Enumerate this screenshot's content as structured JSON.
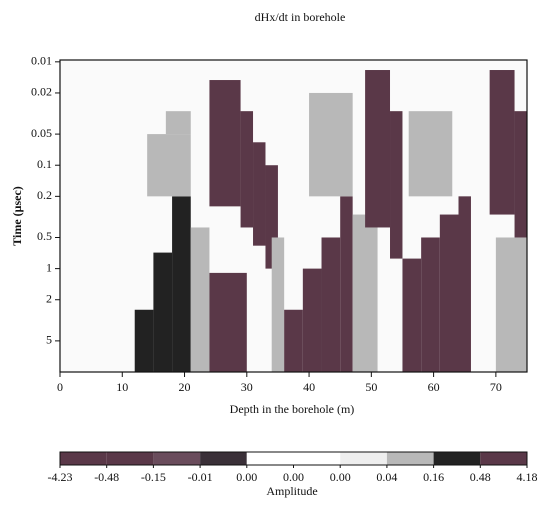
{
  "chart_data": {
    "type": "heatmap",
    "title": "dHx/dt in borehole",
    "xlabel": "Depth in the borehole (m)",
    "ylabel": "Time (μsec)",
    "xlim": [
      0,
      75
    ],
    "xticks": [
      0,
      10,
      20,
      30,
      40,
      50,
      60,
      70
    ],
    "ylim": [
      0.0096,
      10
    ],
    "yscale": "log",
    "yticks": [
      0.01,
      0.02,
      0.05,
      0.1,
      0.2,
      0.5,
      1,
      2,
      5
    ],
    "background": "#fafafa",
    "cells": [
      {
        "x0": 12,
        "x1": 15,
        "t0": 2.5,
        "t1": 10,
        "value": 0.3
      },
      {
        "x0": 15,
        "x1": 18,
        "t0": 0.7,
        "t1": 10,
        "value": 0.3
      },
      {
        "x0": 18,
        "x1": 21,
        "t0": 0.2,
        "t1": 10,
        "value": 0.3
      },
      {
        "x0": 14,
        "x1": 21,
        "t0": 0.05,
        "t1": 0.2,
        "value": 0.1
      },
      {
        "x0": 17,
        "x1": 21,
        "t0": 0.03,
        "t1": 0.05,
        "value": 0.1
      },
      {
        "x0": 21,
        "x1": 24,
        "t0": 0.4,
        "t1": 10,
        "value": 0.1
      },
      {
        "x0": 24,
        "x1": 29,
        "t0": 0.015,
        "t1": 0.25,
        "value": -1
      },
      {
        "x0": 29,
        "x1": 31,
        "t0": 0.03,
        "t1": 0.4,
        "value": -1
      },
      {
        "x0": 31,
        "x1": 33,
        "t0": 0.06,
        "t1": 0.6,
        "value": -1
      },
      {
        "x0": 33,
        "x1": 35,
        "t0": 0.1,
        "t1": 1,
        "value": -1
      },
      {
        "x0": 24,
        "x1": 30,
        "t0": 1.1,
        "t1": 10,
        "value": -1
      },
      {
        "x0": 34,
        "x1": 36,
        "t0": 0.5,
        "t1": 10,
        "value": 0.1
      },
      {
        "x0": 36,
        "x1": 39,
        "t0": 2.5,
        "t1": 10,
        "value": -1
      },
      {
        "x0": 39,
        "x1": 42,
        "t0": 1,
        "t1": 10,
        "value": -1
      },
      {
        "x0": 42,
        "x1": 45,
        "t0": 0.5,
        "t1": 10,
        "value": -1
      },
      {
        "x0": 45,
        "x1": 47,
        "t0": 0.2,
        "t1": 10,
        "value": -1
      },
      {
        "x0": 40,
        "x1": 47,
        "t0": 0.02,
        "t1": 0.2,
        "value": 0.1
      },
      {
        "x0": 47,
        "x1": 51,
        "t0": 0.3,
        "t1": 10,
        "value": 0.1
      },
      {
        "x0": 49,
        "x1": 53,
        "t0": 0.012,
        "t1": 0.4,
        "value": -1
      },
      {
        "x0": 53,
        "x1": 55,
        "t0": 0.03,
        "t1": 0.8,
        "value": -1
      },
      {
        "x0": 55,
        "x1": 58,
        "t0": 0.8,
        "t1": 10,
        "value": -1
      },
      {
        "x0": 58,
        "x1": 61,
        "t0": 0.5,
        "t1": 10,
        "value": -1
      },
      {
        "x0": 61,
        "x1": 64,
        "t0": 0.3,
        "t1": 10,
        "value": -1
      },
      {
        "x0": 64,
        "x1": 66,
        "t0": 0.2,
        "t1": 10,
        "value": -1
      },
      {
        "x0": 56,
        "x1": 63,
        "t0": 0.03,
        "t1": 0.2,
        "value": 0.1
      },
      {
        "x0": 69,
        "x1": 73,
        "t0": 0.012,
        "t1": 0.3,
        "value": -1
      },
      {
        "x0": 73,
        "x1": 75,
        "t0": 0.03,
        "t1": 0.5,
        "value": -1
      },
      {
        "x0": 70,
        "x1": 75,
        "t0": 0.5,
        "t1": 10,
        "value": 0.1
      }
    ],
    "colorbar": {
      "label": "Amplitude",
      "ticks": [
        -4.23,
        -0.48,
        -0.15,
        -0.01,
        {
          "value": 0,
          "label": "0.00"
        },
        {
          "value": 0,
          "label": "0.00"
        },
        {
          "value": 0,
          "label": "0.00"
        },
        0.04,
        0.16,
        0.48,
        4.18
      ],
      "colors": [
        "#5a3848",
        "#5a3848",
        "#6a4c5c",
        "#3a3038",
        "#ffffff",
        "#ffffff",
        "#eeeeee",
        "#b8b8b8",
        "#222222",
        "#5a3848"
      ]
    }
  }
}
